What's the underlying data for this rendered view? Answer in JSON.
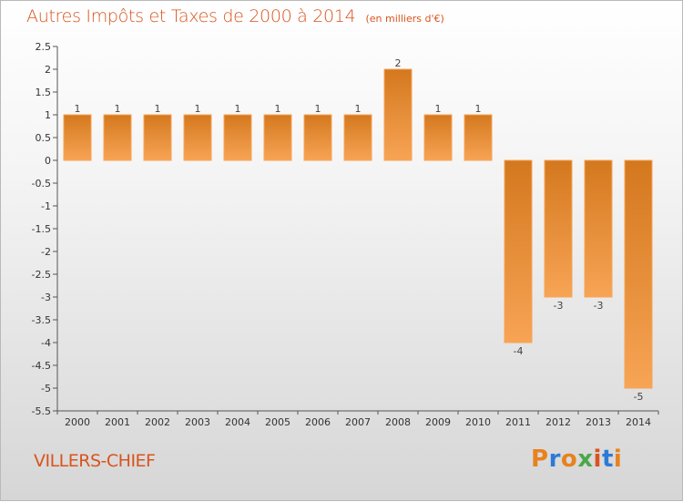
{
  "header": {
    "title": "Autres Impôts et Taxes de 2000 à 2014",
    "unit": "(en milliers d'€)"
  },
  "footer": {
    "commune": "VILLERS-CHIEF",
    "brand": "Proxiti",
    "brand_colors": [
      "#e8821e",
      "#2b7bd6",
      "#e8821e",
      "#4aa84a",
      "#d9541e",
      "#2b7bd6",
      "#e8821e"
    ]
  },
  "colors": {
    "title": "#d9541e",
    "bar_dark": "#d4781e",
    "bar_light": "#f7a455",
    "axis": "#555555",
    "tick_label": "#333333",
    "value_label": "#444444"
  },
  "chart_data": {
    "type": "bar",
    "categories": [
      "2000",
      "2001",
      "2002",
      "2003",
      "2004",
      "2005",
      "2006",
      "2007",
      "2008",
      "2009",
      "2010",
      "2011",
      "2012",
      "2013",
      "2014"
    ],
    "values": [
      1,
      1,
      1,
      1,
      1,
      1,
      1,
      1,
      2,
      1,
      1,
      -4,
      -3,
      -3,
      -5
    ],
    "value_labels": [
      "1",
      "1",
      "1",
      "1",
      "1",
      "1",
      "1",
      "1",
      "2",
      "1",
      "1",
      "-4",
      "-3",
      "-3",
      "-5"
    ],
    "ylim": [
      -5.5,
      2.5
    ],
    "yticks": [
      2.5,
      2,
      1.5,
      1,
      0.5,
      0,
      -0.5,
      -1,
      -1.5,
      -2,
      -2.5,
      -3,
      -3.5,
      -4,
      -4.5,
      -5,
      -5.5
    ],
    "ytick_labels": [
      "2.5",
      "2",
      "1.5",
      "1",
      "0.5",
      "0",
      "-0.5",
      "-1",
      "-1.5",
      "-2",
      "-2.5",
      "-3",
      "-3.5",
      "-4",
      "-4.5",
      "-5",
      "-5.5"
    ],
    "grid": false
  }
}
